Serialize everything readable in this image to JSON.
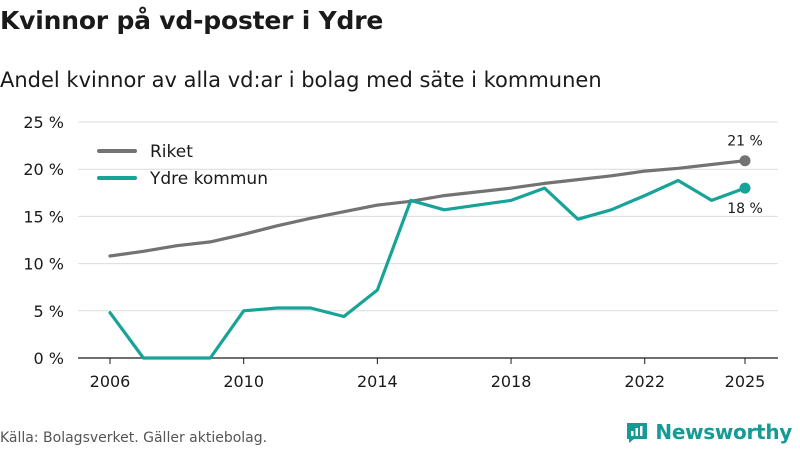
{
  "header": {
    "title": "Kvinnor på vd-poster i Ydre",
    "subtitle": "Andel kvinnor av alla vd:ar i bolag med säte i kommunen"
  },
  "footer": {
    "source": "Källa: Bolagsverket. Gäller aktiebolag.",
    "brand": "Newsworthy"
  },
  "chart_data": {
    "type": "line",
    "x_ticks": [
      2006,
      2010,
      2014,
      2018,
      2022,
      2025
    ],
    "y_ticks": [
      0,
      5,
      10,
      15,
      20,
      25
    ],
    "y_tick_labels": [
      "0 %",
      "5 %",
      "10 %",
      "15 %",
      "20 %",
      "25 %"
    ],
    "xlim": [
      2006,
      2025
    ],
    "ylim": [
      0,
      25
    ],
    "grid": "horizontal",
    "legend_position": "top-left",
    "series": [
      {
        "name": "Riket",
        "color": "#737373",
        "x": [
          2006,
          2007,
          2008,
          2009,
          2010,
          2011,
          2012,
          2013,
          2014,
          2015,
          2016,
          2017,
          2018,
          2019,
          2020,
          2021,
          2022,
          2023,
          2024,
          2025
        ],
        "values": [
          10.8,
          11.3,
          11.9,
          12.3,
          13.1,
          14.0,
          14.8,
          15.5,
          16.2,
          16.6,
          17.2,
          17.6,
          18.0,
          18.5,
          18.9,
          19.3,
          19.8,
          20.1,
          20.5,
          20.9
        ],
        "end_label": "21 %"
      },
      {
        "name": "Ydre kommun",
        "color": "#17a398",
        "x": [
          2006,
          2007,
          2008,
          2009,
          2010,
          2011,
          2012,
          2013,
          2014,
          2015,
          2016,
          2017,
          2018,
          2019,
          2020,
          2021,
          2022,
          2023,
          2024,
          2025
        ],
        "values": [
          4.8,
          0.0,
          0.0,
          0.0,
          5.0,
          5.3,
          5.3,
          4.4,
          7.2,
          16.7,
          15.7,
          16.2,
          16.7,
          18.0,
          14.7,
          15.7,
          17.2,
          18.8,
          16.7,
          18.0
        ],
        "end_label": "18 %"
      }
    ]
  }
}
